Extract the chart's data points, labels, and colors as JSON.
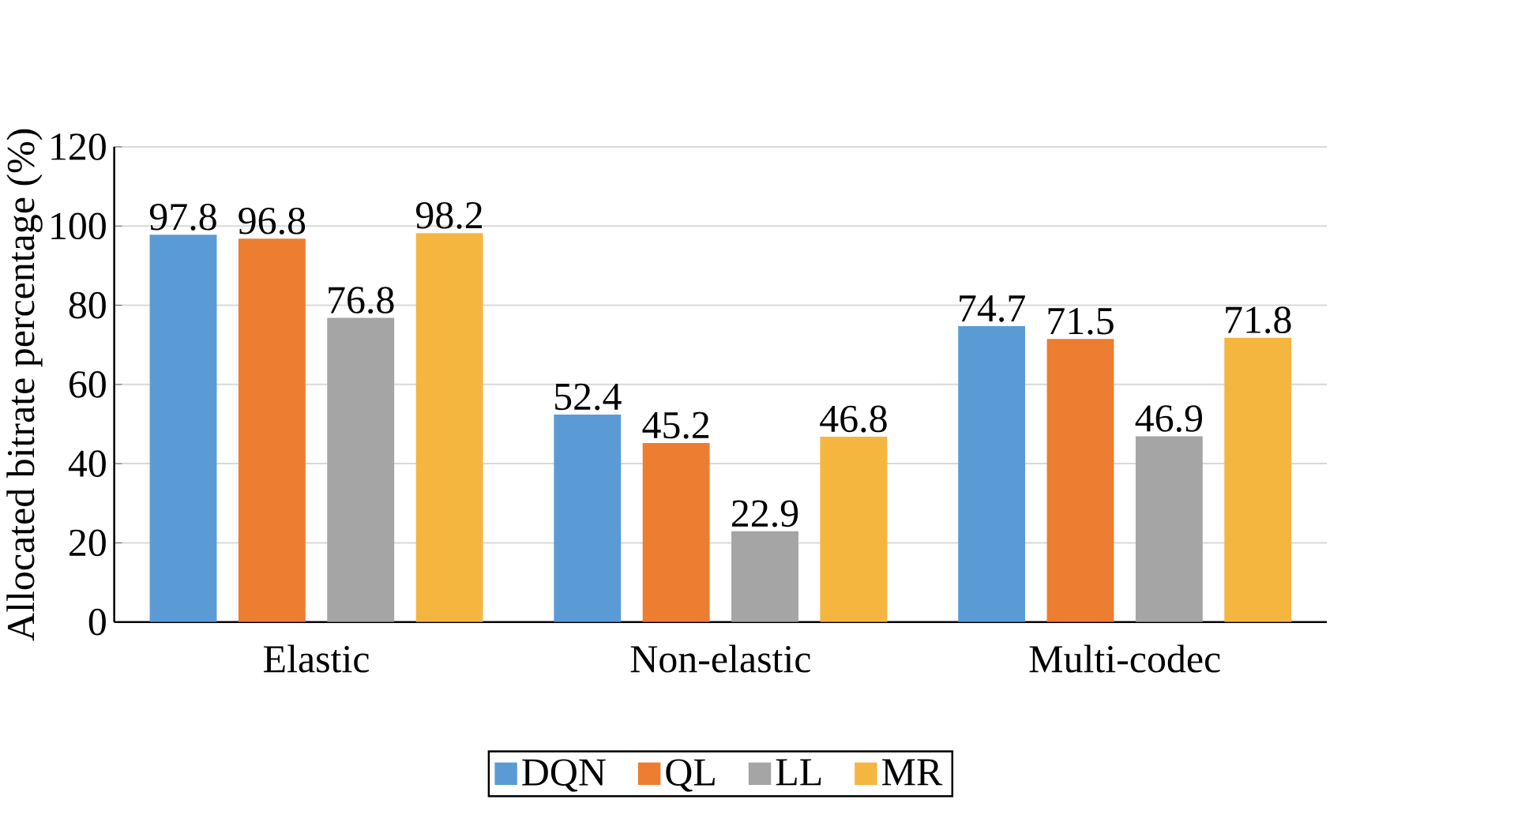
{
  "chart_data": {
    "type": "bar",
    "ylabel": "Allocated bitrate percentage (%)",
    "categories": [
      "Elastic",
      "Non-elastic",
      "Multi-codec"
    ],
    "series": [
      {
        "name": "DQN",
        "color": "#5b9bd5",
        "values": [
          97.8,
          52.4,
          74.7
        ]
      },
      {
        "name": "QL",
        "color": "#ed7d31",
        "values": [
          96.8,
          45.2,
          71.5
        ]
      },
      {
        "name": "LL",
        "color": "#a5a5a5",
        "values": [
          76.8,
          22.9,
          46.9
        ]
      },
      {
        "name": "MR",
        "color": "#f5b640",
        "values": [
          98.2,
          46.8,
          71.8
        ]
      }
    ],
    "ylim": [
      0,
      120
    ],
    "yticks": [
      0,
      20,
      40,
      60,
      80,
      100,
      120
    ],
    "grid": "y",
    "legend": "bottom",
    "data_labels": true
  }
}
